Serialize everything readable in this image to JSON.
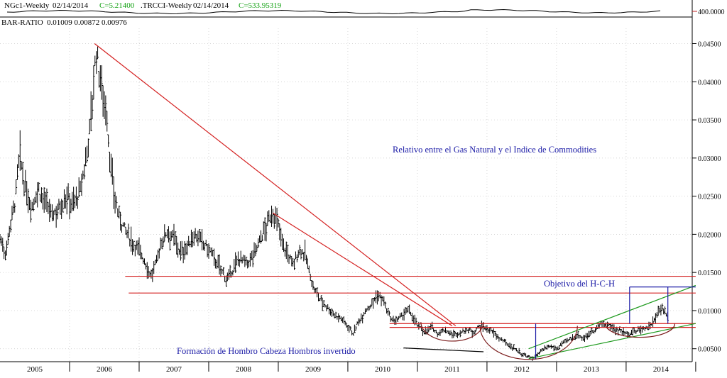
{
  "header": {
    "symbol1": "NGc1-Weekly",
    "date1": "02/14/2014",
    "close1": "C=5.21400",
    "symbol2": ".TRCCI-Weekly",
    "date2": "02/14/2014",
    "close2": "C=533.95319",
    "upper_scale_label": "400.0000",
    "ratio_label": "BAR-RATIO",
    "ratio_values": "0.01009  0.00872  0.00976"
  },
  "annotations": {
    "title": "Relativo entre el Gas Natural y el Indice de Commodities",
    "target": "Objetivo del H-C-H",
    "pattern": "Formación de Hombro Cabeza Hombros invertido"
  },
  "colors": {
    "accent": "#1a1aa6",
    "green_text": "#10a010",
    "red_line": "#d42020",
    "green_line": "#1e9a1e",
    "brown_arc": "#7a1a1a",
    "blue_line": "#1a1aa6",
    "bars": "#000000"
  },
  "chart_data": {
    "type": "bar",
    "series_description": "weekly OHLC bar ratio NGc1 / .TRCCI",
    "x_tick_labels": [
      "2005",
      "2006",
      "2007",
      "2008",
      "2009",
      "2010",
      "2011",
      "2012",
      "2013",
      "2014"
    ],
    "x_range": [
      2004.5,
      2014.45
    ],
    "y_tick_labels": [
      "0.00500",
      "0.01000",
      "0.01500",
      "0.02000",
      "0.02500",
      "0.03000",
      "0.03500",
      "0.04000",
      "0.04500"
    ],
    "y_range": [
      0.0033,
      0.047
    ],
    "path": [
      [
        2004.5,
        0.0195
      ],
      [
        2004.58,
        0.0175
      ],
      [
        2004.65,
        0.0215
      ],
      [
        2004.72,
        0.0245
      ],
      [
        2004.78,
        0.0305
      ],
      [
        2004.85,
        0.0265
      ],
      [
        2004.95,
        0.0235
      ],
      [
        2005.05,
        0.026
      ],
      [
        2005.15,
        0.024
      ],
      [
        2005.25,
        0.0225
      ],
      [
        2005.35,
        0.0235
      ],
      [
        2005.45,
        0.025
      ],
      [
        2005.55,
        0.024
      ],
      [
        2005.65,
        0.0255
      ],
      [
        2005.72,
        0.029
      ],
      [
        2005.78,
        0.033
      ],
      [
        2005.84,
        0.039
      ],
      [
        2005.88,
        0.044
      ],
      [
        2005.92,
        0.0415
      ],
      [
        2005.96,
        0.0395
      ],
      [
        2006.0,
        0.0375
      ],
      [
        2006.04,
        0.035
      ],
      [
        2006.08,
        0.03
      ],
      [
        2006.12,
        0.0265
      ],
      [
        2006.2,
        0.0225
      ],
      [
        2006.3,
        0.0205
      ],
      [
        2006.4,
        0.019
      ],
      [
        2006.5,
        0.018
      ],
      [
        2006.6,
        0.016
      ],
      [
        2006.68,
        0.0145
      ],
      [
        2006.75,
        0.0165
      ],
      [
        2006.82,
        0.019
      ],
      [
        2006.9,
        0.0205
      ],
      [
        2007.0,
        0.0195
      ],
      [
        2007.1,
        0.0175
      ],
      [
        2007.2,
        0.0185
      ],
      [
        2007.3,
        0.02
      ],
      [
        2007.4,
        0.019
      ],
      [
        2007.5,
        0.018
      ],
      [
        2007.6,
        0.0165
      ],
      [
        2007.7,
        0.015
      ],
      [
        2007.78,
        0.014
      ],
      [
        2007.85,
        0.0155
      ],
      [
        2007.95,
        0.017
      ],
      [
        2008.05,
        0.016
      ],
      [
        2008.15,
        0.0175
      ],
      [
        2008.25,
        0.0195
      ],
      [
        2008.35,
        0.0215
      ],
      [
        2008.42,
        0.023
      ],
      [
        2008.5,
        0.021
      ],
      [
        2008.58,
        0.0185
      ],
      [
        2008.65,
        0.017
      ],
      [
        2008.72,
        0.016
      ],
      [
        2008.8,
        0.018
      ],
      [
        2008.88,
        0.0175
      ],
      [
        2008.95,
        0.015
      ],
      [
        2009.0,
        0.013
      ],
      [
        2009.1,
        0.0115
      ],
      [
        2009.2,
        0.0105
      ],
      [
        2009.3,
        0.0095
      ],
      [
        2009.4,
        0.009
      ],
      [
        2009.5,
        0.008
      ],
      [
        2009.58,
        0.007
      ],
      [
        2009.65,
        0.0085
      ],
      [
        2009.75,
        0.01
      ],
      [
        2009.85,
        0.011
      ],
      [
        2009.92,
        0.012
      ],
      [
        2010.0,
        0.0115
      ],
      [
        2010.08,
        0.0095
      ],
      [
        2010.15,
        0.0085
      ],
      [
        2010.25,
        0.009
      ],
      [
        2010.35,
        0.01
      ],
      [
        2010.42,
        0.0095
      ],
      [
        2010.5,
        0.008
      ],
      [
        2010.6,
        0.0072
      ],
      [
        2010.7,
        0.0078
      ],
      [
        2010.8,
        0.007
      ],
      [
        2010.9,
        0.0075
      ],
      [
        2011.0,
        0.0068
      ],
      [
        2011.1,
        0.007
      ],
      [
        2011.2,
        0.0075
      ],
      [
        2011.3,
        0.0072
      ],
      [
        2011.4,
        0.008
      ],
      [
        2011.5,
        0.0076
      ],
      [
        2011.6,
        0.007
      ],
      [
        2011.7,
        0.0062
      ],
      [
        2011.8,
        0.0056
      ],
      [
        2011.9,
        0.005
      ],
      [
        2012.0,
        0.0043
      ],
      [
        2012.08,
        0.004
      ],
      [
        2012.15,
        0.0037
      ],
      [
        2012.22,
        0.0042
      ],
      [
        2012.3,
        0.0048
      ],
      [
        2012.4,
        0.0053
      ],
      [
        2012.5,
        0.005
      ],
      [
        2012.6,
        0.0058
      ],
      [
        2012.7,
        0.0062
      ],
      [
        2012.8,
        0.0068
      ],
      [
        2012.9,
        0.0064
      ],
      [
        2013.0,
        0.0072
      ],
      [
        2013.1,
        0.008
      ],
      [
        2013.2,
        0.0082
      ],
      [
        2013.3,
        0.0078
      ],
      [
        2013.4,
        0.0074
      ],
      [
        2013.5,
        0.007
      ],
      [
        2013.6,
        0.0072
      ],
      [
        2013.7,
        0.0075
      ],
      [
        2013.8,
        0.0078
      ],
      [
        2013.9,
        0.0085
      ],
      [
        2014.0,
        0.0105
      ],
      [
        2014.05,
        0.0098
      ],
      [
        2014.1,
        0.0094
      ]
    ],
    "upper_panel_line_y": 0.5,
    "lines": [
      {
        "name": "red-trendline-long",
        "color": "red",
        "x1": 2005.86,
        "y1": 0.045,
        "x2": 2011.05,
        "y2": 0.008
      },
      {
        "name": "red-trendline-short",
        "color": "red",
        "x1": 2008.42,
        "y1": 0.0228,
        "x2": 2011.0,
        "y2": 0.008
      },
      {
        "name": "red-horizontal-0145",
        "color": "red",
        "x1": 2006.3,
        "y1": 0.0145,
        "x2": 2014.5,
        "y2": 0.0145
      },
      {
        "name": "red-horizontal-0123",
        "color": "red",
        "x1": 2006.35,
        "y1": 0.0123,
        "x2": 2014.5,
        "y2": 0.0123
      },
      {
        "name": "red-horizontal-0083",
        "color": "red",
        "x1": 2010.1,
        "y1": 0.0083,
        "x2": 2014.5,
        "y2": 0.0083
      },
      {
        "name": "red-horizontal-0078",
        "color": "red",
        "x1": 2010.1,
        "y1": 0.0078,
        "x2": 2014.5,
        "y2": 0.0078
      },
      {
        "name": "green-channel-upper",
        "color": "green",
        "x1": 2012.1,
        "y1": 0.005,
        "x2": 2014.5,
        "y2": 0.0133
      },
      {
        "name": "green-channel-lower",
        "color": "green",
        "x1": 2012.1,
        "y1": 0.0037,
        "x2": 2014.5,
        "y2": 0.0083
      },
      {
        "name": "blue-target-top",
        "color": "blue",
        "x1": 2013.55,
        "y1": 0.0131,
        "x2": 2014.5,
        "y2": 0.0131
      },
      {
        "name": "blue-vertical-head",
        "color": "blue",
        "x1": 2012.2,
        "y1": 0.0036,
        "x2": 2012.2,
        "y2": 0.0083
      },
      {
        "name": "blue-vertical-target-left",
        "color": "blue",
        "x1": 2013.55,
        "y1": 0.0083,
        "x2": 2013.55,
        "y2": 0.0131
      },
      {
        "name": "blue-vertical-target-right",
        "color": "blue",
        "x1": 2014.1,
        "y1": 0.0083,
        "x2": 2014.1,
        "y2": 0.0131
      },
      {
        "name": "black-pattern-underline",
        "color": "black",
        "x1": 2010.3,
        "y1": 0.0051,
        "x2": 2011.45,
        "y2": 0.0046
      }
    ],
    "arcs": [
      {
        "name": "left-shoulder-arc",
        "cx": 2011.0,
        "cy": 0.0085,
        "rx": 0.45,
        "ry": 0.0025
      },
      {
        "name": "head-arc",
        "cx": 2012.1,
        "cy": 0.008,
        "rx": 0.7,
        "ry": 0.0044
      },
      {
        "name": "right-shoulder-arc",
        "cx": 2013.7,
        "cy": 0.0083,
        "rx": 0.5,
        "ry": 0.0018
      }
    ]
  }
}
